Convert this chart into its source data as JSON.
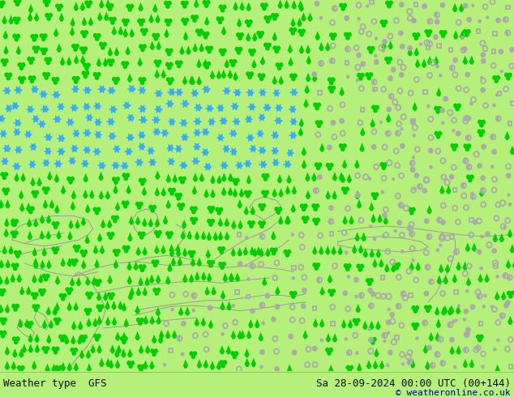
{
  "title_left": "Weather type  GFS",
  "title_right": "Sa 28-09-2024 00:00 UTC (00+144)",
  "subtitle_right": "© weatheronline.co.uk",
  "bg_color": "#b5f07a",
  "text_color": "#101010",
  "link_color": "#00008b",
  "title_fontsize": 9.0,
  "subtitle_fontsize": 8.0,
  "map_line_color": "#999999",
  "figsize": [
    6.34,
    4.9
  ],
  "dpi": 100,
  "green": "#00d000",
  "blue": "#33aaff",
  "gray_fill": "#aaaaaa",
  "gray_outline": "#aaaaaa",
  "symbol_size": 5,
  "cols": 38,
  "rows": 26
}
